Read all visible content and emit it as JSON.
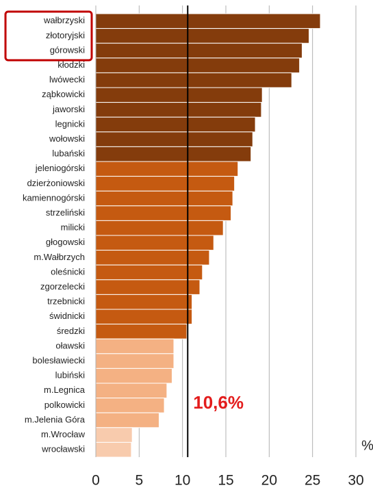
{
  "chart_data": {
    "type": "barh",
    "categories": [
      "wałbrzyski",
      "złotoryjski",
      "górowski",
      "kłodzki",
      "lwówecki",
      "ząbkowicki",
      "jaworski",
      "legnicki",
      "wołowski",
      "lubański",
      "jeleniogórski",
      "dzierżoniowski",
      "kamiennogórski",
      "strzeliński",
      "milicki",
      "głogowski",
      "m.Wałbrzych",
      "oleśnicki",
      "zgorzelecki",
      "trzebnicki",
      "świdnicki",
      "średzki",
      "oławski",
      "bolesławiecki",
      "lubiński",
      "m.Legnica",
      "polkowicki",
      "m.Jelenia Góra",
      "m.Wrocław",
      "wrocławski"
    ],
    "values": [
      25.9,
      24.6,
      23.8,
      23.5,
      22.6,
      19.2,
      19.1,
      18.4,
      18.1,
      17.9,
      16.4,
      16.0,
      15.8,
      15.6,
      14.7,
      13.6,
      13.1,
      12.3,
      12.0,
      11.1,
      11.1,
      10.5,
      9.0,
      9.0,
      8.8,
      8.2,
      7.9,
      7.3,
      4.2,
      4.1
    ],
    "colors": [
      "#843c0c",
      "#843c0c",
      "#843c0c",
      "#843c0c",
      "#843c0c",
      "#843c0c",
      "#843c0c",
      "#843c0c",
      "#843c0c",
      "#843c0c",
      "#c55a11",
      "#c55a11",
      "#c55a11",
      "#c55a11",
      "#c55a11",
      "#c55a11",
      "#c55a11",
      "#c55a11",
      "#c55a11",
      "#c55a11",
      "#c55a11",
      "#c55a11",
      "#f4b183",
      "#f4b183",
      "#f4b183",
      "#f4b183",
      "#f4b183",
      "#f4b183",
      "#f8cbad",
      "#f8cbad"
    ],
    "xlim": [
      0,
      30
    ],
    "xticks": [
      0,
      5,
      10,
      15,
      20,
      25,
      30
    ],
    "grid": true,
    "xlabel": "%",
    "reference_line": {
      "value": 10.6,
      "label": "10,6%",
      "color": "#e31c1c"
    }
  }
}
